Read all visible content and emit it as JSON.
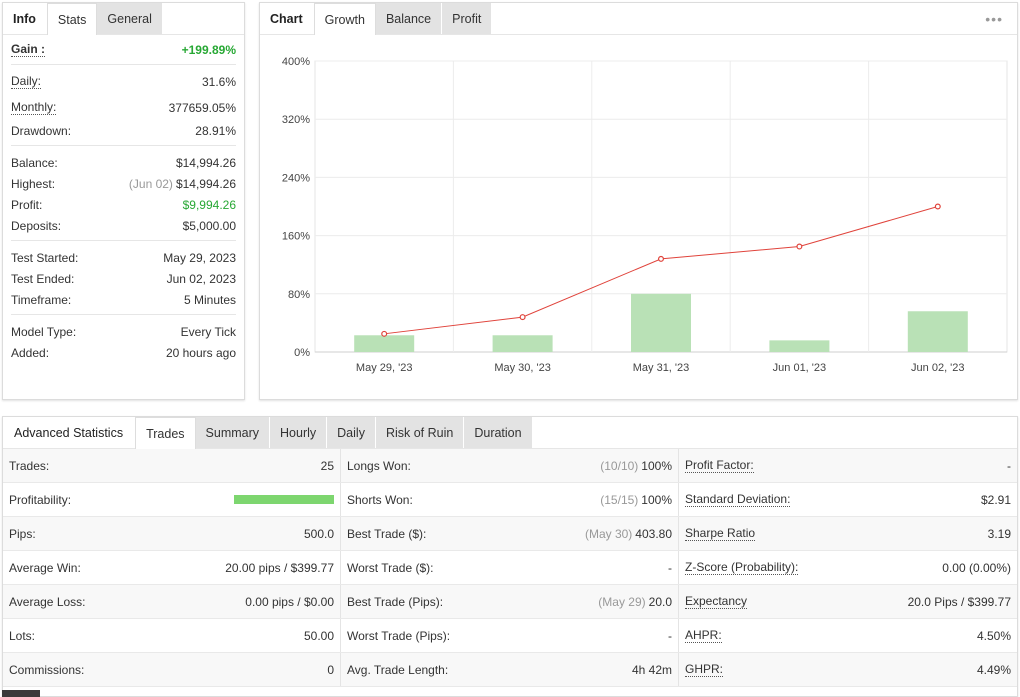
{
  "info_panel": {
    "tabs": [
      "Info",
      "Stats",
      "General"
    ],
    "gain": {
      "label": "Gain :",
      "value": "+199.89%"
    },
    "daily": {
      "label": "Daily:",
      "value": "31.6%"
    },
    "monthly": {
      "label": "Monthly:",
      "value": "377659.05%"
    },
    "drawdown": {
      "label": "Drawdown:",
      "value": "28.91%"
    },
    "balance": {
      "label": "Balance:",
      "value": "$14,994.26"
    },
    "highest": {
      "label": "Highest:",
      "date": "(Jun 02)",
      "value": "$14,994.26"
    },
    "profit": {
      "label": "Profit:",
      "value": "$9,994.26"
    },
    "deposits": {
      "label": "Deposits:",
      "value": "$5,000.00"
    },
    "test_started": {
      "label": "Test Started:",
      "value": "May 29, 2023"
    },
    "test_ended": {
      "label": "Test Ended:",
      "value": "Jun 02, 2023"
    },
    "timeframe": {
      "label": "Timeframe:",
      "value": "5 Minutes"
    },
    "model_type": {
      "label": "Model Type:",
      "value": "Every Tick"
    },
    "added": {
      "label": "Added:",
      "value": "20 hours ago"
    }
  },
  "chart_panel": {
    "tabs": [
      "Chart",
      "Growth",
      "Balance",
      "Profit"
    ],
    "menu_icon": "more-dots-icon"
  },
  "chart_data": {
    "type": "bar",
    "categories": [
      "May 29, '23",
      "May 30, '23",
      "May 31, '23",
      "Jun 01, '23",
      "Jun 02, '23"
    ],
    "series": [
      {
        "type": "bar",
        "values": [
          23,
          23,
          80,
          16,
          56
        ]
      },
      {
        "type": "line",
        "values": [
          25,
          48,
          128,
          145,
          200
        ]
      }
    ],
    "yticks": [
      "0%",
      "80%",
      "160%",
      "240%",
      "320%",
      "400%"
    ],
    "ylim": [
      0,
      400
    ],
    "grid": true,
    "colors": {
      "bar": "#b9e1b6",
      "line": "#e0433b"
    }
  },
  "advanced": {
    "tabs": [
      "Advanced Statistics",
      "Trades",
      "Summary",
      "Hourly",
      "Daily",
      "Risk of Ruin",
      "Duration"
    ],
    "rows": [
      {
        "c1": {
          "label": "Trades:",
          "value": "25"
        },
        "c2": {
          "label": "Longs Won:",
          "muted": "(10/10)",
          "value": "100%"
        },
        "c3": {
          "label": "Profit Factor:",
          "value": "-"
        }
      },
      {
        "c1": {
          "label": "Profitability:",
          "value": "",
          "bar": 1.0
        },
        "c2": {
          "label": "Shorts Won:",
          "muted": "(15/15)",
          "value": "100%"
        },
        "c3": {
          "label": "Standard Deviation:",
          "value": "$2.91"
        }
      },
      {
        "c1": {
          "label": "Pips:",
          "value": "500.0"
        },
        "c2": {
          "label": "Best Trade ($):",
          "muted": "(May 30)",
          "value": "403.80"
        },
        "c3": {
          "label": "Sharpe Ratio",
          "value": "3.19"
        }
      },
      {
        "c1": {
          "label": "Average Win:",
          "value": "20.00 pips / $399.77"
        },
        "c2": {
          "label": "Worst Trade ($):",
          "muted": "",
          "value": "-"
        },
        "c3": {
          "label": "Z-Score (Probability):",
          "value": "0.00 (0.00%)"
        }
      },
      {
        "c1": {
          "label": "Average Loss:",
          "value": "0.00 pips / $0.00"
        },
        "c2": {
          "label": "Best Trade (Pips):",
          "muted": "(May 29)",
          "value": "20.0"
        },
        "c3": {
          "label": "Expectancy",
          "value": "20.0 Pips / $399.77"
        }
      },
      {
        "c1": {
          "label": "Lots:",
          "value": "50.00"
        },
        "c2": {
          "label": "Worst Trade (Pips):",
          "muted": "",
          "value": "-"
        },
        "c3": {
          "label": "AHPR:",
          "value": "4.50%"
        }
      },
      {
        "c1": {
          "label": "Commissions:",
          "value": "0"
        },
        "c2": {
          "label": "Avg. Trade Length:",
          "muted": "",
          "value": "4h 42m"
        },
        "c3": {
          "label": "GHPR:",
          "value": "4.49%"
        }
      }
    ]
  }
}
